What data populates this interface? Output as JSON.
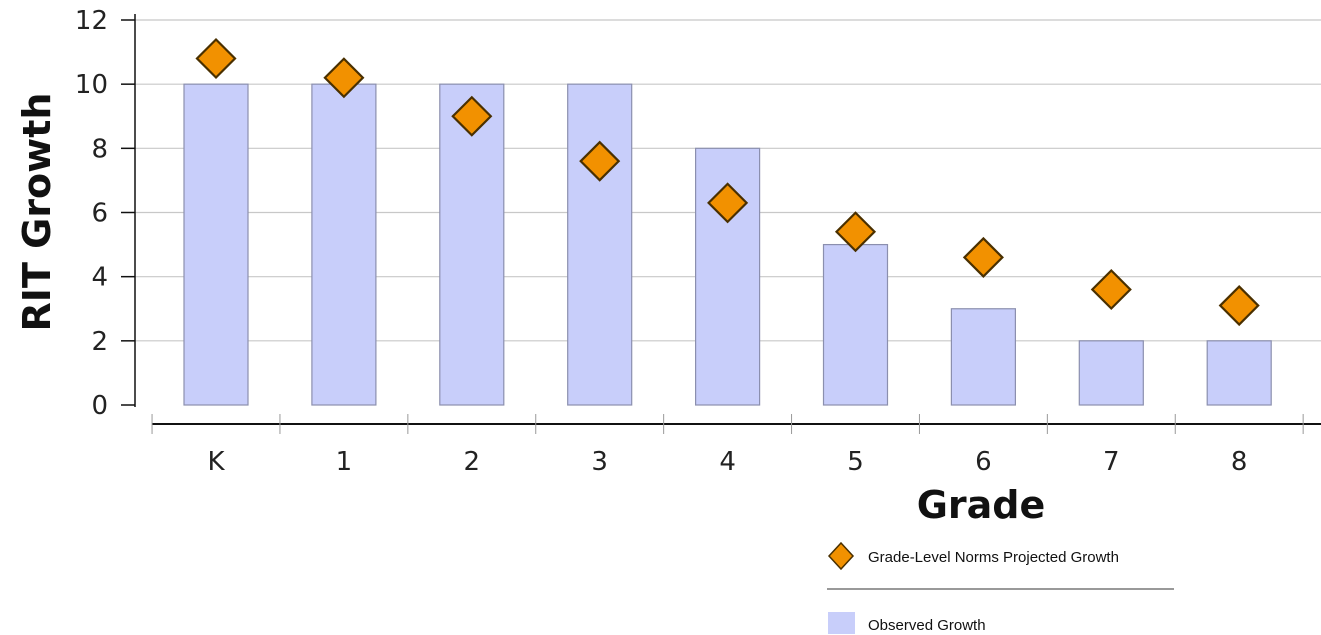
{
  "chart_data": {
    "type": "bar",
    "xlabel": "Grade",
    "ylabel": "RIT Growth",
    "categories": [
      "K",
      "1",
      "2",
      "3",
      "4",
      "5",
      "6",
      "7",
      "8"
    ],
    "series": [
      {
        "name": "Observed Growth",
        "kind": "bar",
        "color": "#c8cefa",
        "values": [
          10,
          10,
          10,
          10,
          8,
          5,
          3,
          2,
          2
        ]
      },
      {
        "name": "Grade-Level Norms Projected Growth",
        "kind": "marker-diamond",
        "color": "#f29100",
        "values": [
          10.8,
          10.2,
          9.0,
          7.6,
          6.3,
          5.4,
          4.6,
          3.6,
          3.1
        ]
      }
    ],
    "ylim": [
      0,
      12
    ],
    "yticks": [
      0,
      2,
      4,
      6,
      8,
      10,
      12
    ],
    "grid": true,
    "legend_position": "bottom-right"
  }
}
